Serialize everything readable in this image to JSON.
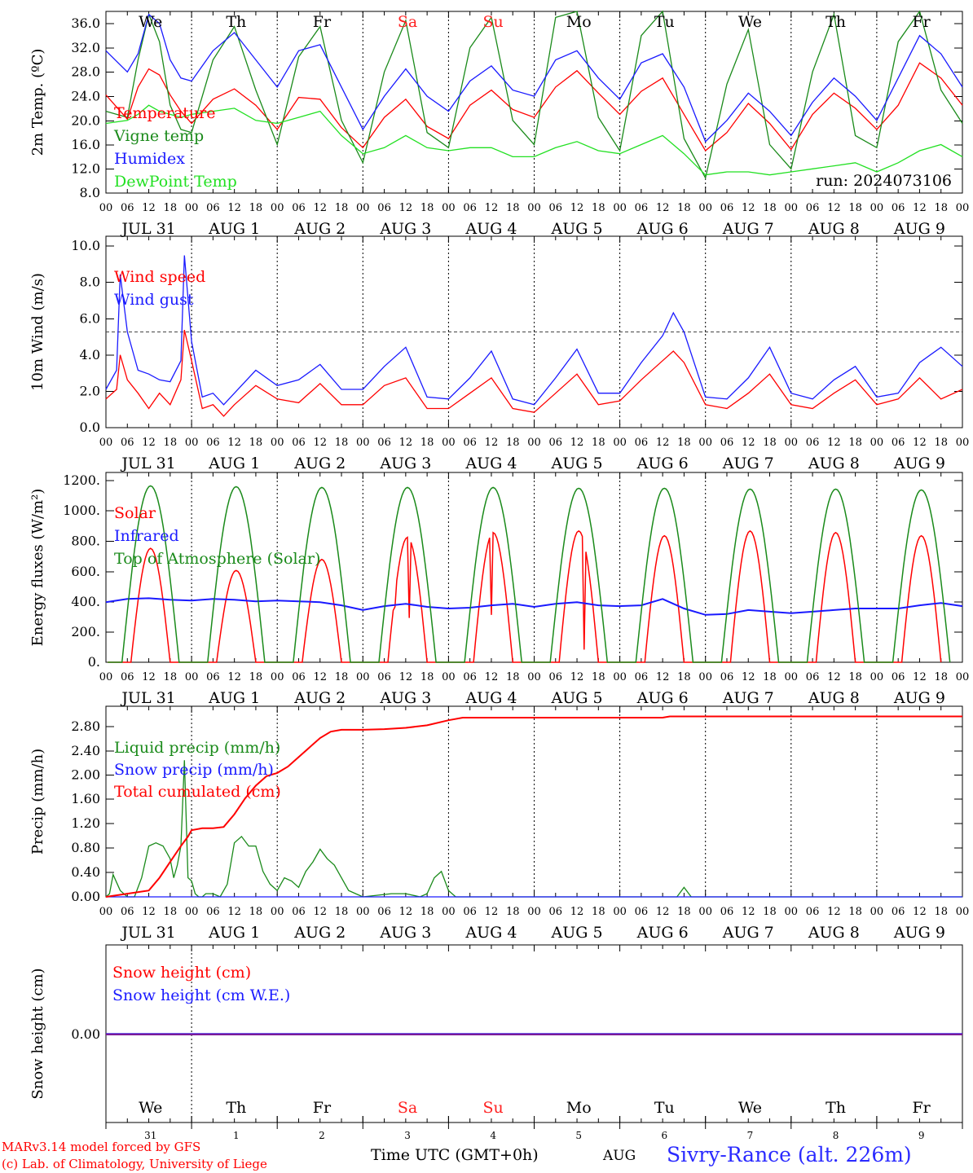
{
  "colors": {
    "temperature": "#ff0000",
    "vigne": "#1a8a1a",
    "humidex": "#1a1aff",
    "dewpoint": "#22e022",
    "weekend": "#ff2020",
    "station": "#2a2aff",
    "credit": "#ff0000"
  },
  "days": [
    "We",
    "Th",
    "Fr",
    "Sa",
    "Su",
    "Mo",
    "Tu",
    "We",
    "Th",
    "Fr"
  ],
  "day_colors": [
    "#000",
    "#000",
    "#000",
    "#ff2020",
    "#ff2020",
    "#000",
    "#000",
    "#000",
    "#000",
    "#000"
  ],
  "hour_ticks": [
    "00",
    "06",
    "12",
    "18"
  ],
  "hour_tick_end": "00",
  "date_labels": [
    "JUL 31",
    "AUG  1",
    "AUG  2",
    "AUG  3",
    "AUG  4",
    "AUG  5",
    "AUG  6",
    "AUG  7",
    "AUG  8",
    "AUG  9"
  ],
  "day_numbers": [
    "31",
    "1",
    "2",
    "3",
    "4",
    "5",
    "6",
    "7",
    "8",
    "9"
  ],
  "footer": {
    "credit_line1": "MARv3.14 model forced by GFS",
    "credit_line2": "(c) Lab. of Climatology, University of Liege",
    "time_label": "Time UTC (GMT+0h)",
    "month_label": "AUG",
    "station": "Sivry-Rance (alt. 226m)"
  },
  "chart_data": [
    {
      "type": "line",
      "ylabel": "2m Temp. (ºC)",
      "ylim": [
        8,
        38
      ],
      "yticks": [
        "8.0",
        "12.0",
        "16.0",
        "20.0",
        "24.0",
        "28.0",
        "32.0",
        "36.0"
      ],
      "annotation": "run: 2024073106",
      "x_unit": "hours since 2024-07-31 00 UTC",
      "series": [
        {
          "name": "Temperature",
          "color": "#ff0000",
          "x": [
            0,
            6,
            9,
            12,
            15,
            18,
            21,
            24,
            30,
            36,
            42,
            48,
            54,
            60,
            66,
            72,
            78,
            84,
            90,
            96,
            102,
            108,
            114,
            120,
            126,
            132,
            138,
            144,
            150,
            156,
            162,
            168,
            174,
            180,
            186,
            192,
            198,
            204,
            210,
            216,
            222,
            228,
            234,
            240
          ],
          "values": [
            24.2,
            20.2,
            25.5,
            28.5,
            27.5,
            24.2,
            21.5,
            19.5,
            23.5,
            25.2,
            22.5,
            18.5,
            23.8,
            23.5,
            18.8,
            15.5,
            20.5,
            23.5,
            19.0,
            17.0,
            22.5,
            25.0,
            21.8,
            20.5,
            25.5,
            28.2,
            24.5,
            21.0,
            24.8,
            27.0,
            21.0,
            15.0,
            18.0,
            22.8,
            19.5,
            15.2,
            21.0,
            24.5,
            22.0,
            18.5,
            22.5,
            29.5,
            27.0,
            22.5
          ]
        },
        {
          "name": "Vigne temp",
          "color": "#1a8a1a",
          "x": [
            0,
            6,
            9,
            12,
            15,
            18,
            21,
            24,
            30,
            36,
            42,
            48,
            54,
            60,
            66,
            72,
            78,
            84,
            90,
            96,
            102,
            108,
            114,
            120,
            126,
            132,
            138,
            144,
            150,
            156,
            162,
            168,
            174,
            180,
            186,
            192,
            198,
            204,
            210,
            216,
            222,
            228,
            234,
            240
          ],
          "values": [
            21.5,
            20.5,
            30.0,
            37.5,
            33.0,
            22.5,
            18.5,
            18.0,
            30.0,
            35.5,
            25.0,
            16.0,
            30.5,
            35.5,
            20.0,
            13.0,
            28.0,
            36.5,
            18.0,
            15.5,
            32.0,
            37.0,
            20.0,
            16.0,
            37.0,
            38.0,
            20.5,
            15.0,
            34.0,
            38.0,
            17.0,
            10.5,
            26.0,
            35.0,
            16.0,
            12.0,
            28.0,
            37.5,
            17.5,
            15.5,
            33.0,
            38.0,
            25.0,
            19.5
          ]
        },
        {
          "name": "Humidex",
          "color": "#1a1aff",
          "x": [
            0,
            6,
            9,
            12,
            15,
            18,
            21,
            24,
            30,
            36,
            42,
            48,
            54,
            60,
            66,
            72,
            78,
            84,
            90,
            96,
            102,
            108,
            114,
            120,
            126,
            132,
            138,
            144,
            150,
            156,
            162,
            168,
            174,
            180,
            186,
            192,
            198,
            204,
            210,
            216,
            222,
            228,
            234,
            240
          ],
          "values": [
            31.5,
            28.0,
            31.0,
            37.5,
            36.0,
            30.0,
            27.0,
            26.5,
            31.5,
            34.5,
            30.0,
            25.5,
            31.5,
            32.5,
            25.5,
            18.5,
            24.0,
            28.5,
            24.0,
            21.5,
            26.5,
            29.0,
            25.0,
            24.0,
            30.0,
            31.5,
            27.0,
            23.5,
            29.5,
            31.0,
            25.5,
            16.5,
            20.0,
            24.5,
            21.5,
            17.5,
            23.0,
            27.0,
            24.0,
            20.0,
            27.0,
            34.0,
            31.0,
            25.5
          ]
        },
        {
          "name": "DewPoint Temp",
          "color": "#22e022",
          "x": [
            0,
            6,
            9,
            12,
            15,
            18,
            21,
            24,
            30,
            36,
            42,
            48,
            54,
            60,
            66,
            72,
            78,
            84,
            90,
            96,
            102,
            108,
            114,
            120,
            126,
            132,
            138,
            144,
            150,
            156,
            162,
            168,
            174,
            180,
            186,
            192,
            198,
            204,
            210,
            216,
            222,
            228,
            234,
            240
          ],
          "values": [
            19.5,
            20.0,
            21.0,
            22.5,
            21.5,
            21.0,
            20.5,
            21.0,
            21.5,
            22.0,
            20.0,
            19.5,
            20.5,
            21.5,
            17.5,
            14.5,
            15.5,
            17.5,
            15.5,
            15.0,
            15.5,
            15.5,
            14.0,
            14.0,
            15.5,
            16.5,
            15.0,
            14.5,
            16.0,
            17.5,
            14.5,
            11.0,
            11.5,
            11.5,
            11.0,
            11.5,
            12.0,
            12.5,
            13.0,
            11.5,
            13.0,
            15.0,
            16.0,
            14.0
          ]
        }
      ]
    },
    {
      "type": "line",
      "ylabel": "10m Wind (m/s)",
      "ylim": [
        0,
        10
      ],
      "yticks": [
        "0.0",
        "2.0",
        "4.0",
        "6.0",
        "8.0",
        "10.0"
      ],
      "dashed_line": 5,
      "x_unit": "hours since 2024-07-31 00 UTC",
      "series": [
        {
          "name": "Wind speed",
          "color": "#ff0000",
          "x": [
            0,
            3,
            4,
            6,
            9,
            12,
            15,
            18,
            21,
            22,
            24,
            27,
            30,
            33,
            36,
            42,
            48,
            54,
            60,
            66,
            72,
            78,
            84,
            90,
            96,
            102,
            108,
            114,
            120,
            126,
            132,
            138,
            144,
            150,
            156,
            159,
            162,
            168,
            174,
            180,
            186,
            192,
            198,
            204,
            210,
            216,
            222,
            228,
            234,
            240
          ],
          "values": [
            1.5,
            2.0,
            3.8,
            2.5,
            1.8,
            1.0,
            1.8,
            1.2,
            2.5,
            5.1,
            3.5,
            1.0,
            1.2,
            0.6,
            1.2,
            2.2,
            1.5,
            1.3,
            2.3,
            1.2,
            1.2,
            2.2,
            2.6,
            1.0,
            1.0,
            1.8,
            2.6,
            1.0,
            0.8,
            1.8,
            2.8,
            1.2,
            1.4,
            2.5,
            3.5,
            4.0,
            3.4,
            1.2,
            1.0,
            1.8,
            2.8,
            1.2,
            1.0,
            1.8,
            2.5,
            1.2,
            1.5,
            2.6,
            1.5,
            2.0
          ]
        },
        {
          "name": "Wind gust",
          "color": "#1a1aff",
          "x": [
            0,
            3,
            4,
            6,
            9,
            12,
            15,
            18,
            21,
            22,
            24,
            27,
            30,
            33,
            36,
            42,
            48,
            54,
            60,
            66,
            72,
            78,
            84,
            90,
            96,
            102,
            108,
            114,
            120,
            126,
            132,
            138,
            144,
            150,
            156,
            159,
            162,
            168,
            174,
            180,
            186,
            192,
            198,
            204,
            210,
            216,
            222,
            228,
            234,
            240
          ],
          "values": [
            2.0,
            3.0,
            8.0,
            5.0,
            3.0,
            2.8,
            2.5,
            2.4,
            3.5,
            9.0,
            4.5,
            1.6,
            1.8,
            1.2,
            1.8,
            3.0,
            2.2,
            2.5,
            3.3,
            2.0,
            2.0,
            3.2,
            4.2,
            1.6,
            1.5,
            2.6,
            4.0,
            1.5,
            1.2,
            2.6,
            4.1,
            1.8,
            1.8,
            3.4,
            4.8,
            6.0,
            5.0,
            1.6,
            1.5,
            2.6,
            4.2,
            1.8,
            1.5,
            2.5,
            3.2,
            1.6,
            1.8,
            3.4,
            4.2,
            3.2
          ]
        }
      ]
    },
    {
      "type": "line",
      "ylabel": "Energy fluxes (W/m²)",
      "ylim": [
        0,
        1200
      ],
      "yticks": [
        "0.",
        "200.",
        "400.",
        "600.",
        "800.",
        "1000.",
        "1200."
      ],
      "x_unit": "hours since 2024-07-31 00 UTC",
      "series": [
        {
          "name": "Solar",
          "color": "#ff0000",
          "peaks": [
            720,
            580,
            650,
            790,
            820,
            830,
            800,
            830,
            820,
            800
          ],
          "solar_dips": [
            {
              "x": 81,
              "y": 350
            },
            {
              "x": 85,
              "y": 280
            },
            {
              "x": 108,
              "y": 300
            },
            {
              "x": 134,
              "y": 80
            }
          ]
        },
        {
          "name": "Infrared",
          "color": "#1a1aff",
          "x": [
            0,
            6,
            12,
            18,
            24,
            30,
            36,
            42,
            48,
            54,
            60,
            66,
            72,
            78,
            84,
            90,
            96,
            102,
            108,
            114,
            120,
            126,
            132,
            138,
            144,
            150,
            156,
            162,
            168,
            174,
            180,
            186,
            192,
            198,
            204,
            210,
            216,
            222,
            228,
            234,
            240
          ],
          "values": [
            380,
            400,
            405,
            395,
            390,
            400,
            395,
            385,
            390,
            385,
            380,
            360,
            330,
            355,
            370,
            350,
            340,
            345,
            360,
            370,
            350,
            370,
            380,
            360,
            355,
            360,
            400,
            340,
            300,
            305,
            330,
            320,
            310,
            320,
            330,
            340,
            340,
            340,
            360,
            375,
            355
          ]
        },
        {
          "name": "Top of Atmosphere (Solar)",
          "color": "#1a8a1a",
          "peaks": [
            1115,
            1110,
            1105,
            1105,
            1105,
            1100,
            1100,
            1095,
            1095,
            1090
          ]
        }
      ]
    },
    {
      "type": "line",
      "ylabel": "Precip (mm/h)",
      "ylim": [
        0,
        3.0
      ],
      "yticks": [
        "0.00",
        "0.40",
        "0.80",
        "1.20",
        "1.60",
        "2.00",
        "2.40",
        "2.80"
      ],
      "x_unit": "hours since 2024-07-31 00 UTC",
      "series": [
        {
          "name": "Liquid precip (mm/h)",
          "color": "#1a8a1a",
          "x": [
            0,
            1,
            2,
            4,
            6,
            8,
            10,
            12,
            14,
            16,
            18,
            19,
            20,
            21,
            22,
            23,
            24,
            25,
            26,
            27,
            28,
            30,
            32,
            34,
            36,
            38,
            40,
            42,
            44,
            46,
            48,
            50,
            52,
            54,
            56,
            58,
            60,
            62,
            64,
            66,
            68,
            70,
            72,
            80,
            84,
            88,
            90,
            92,
            94,
            96,
            98,
            100,
            102,
            120,
            150,
            160,
            162,
            164,
            170,
            240
          ],
          "values": [
            0,
            0.05,
            0.35,
            0.1,
            0,
            0,
            0.3,
            0.8,
            0.85,
            0.8,
            0.6,
            0.3,
            0.5,
            0.8,
            2.15,
            0.3,
            0.25,
            0.05,
            0,
            0,
            0.05,
            0.05,
            0,
            0.2,
            0.85,
            0.95,
            0.8,
            0.8,
            0.4,
            0.2,
            0.1,
            0.3,
            0.25,
            0.15,
            0.4,
            0.55,
            0.75,
            0.6,
            0.5,
            0.3,
            0.1,
            0.05,
            0,
            0.05,
            0.05,
            0,
            0.05,
            0.3,
            0.4,
            0.1,
            0,
            0,
            0,
            0,
            0,
            0,
            0.15,
            0,
            0,
            0
          ]
        },
        {
          "name": "Snow precip (mm/h)",
          "color": "#1a1aff",
          "x": [
            0,
            240
          ],
          "values": [
            0,
            0
          ]
        },
        {
          "name": "Total cumulated (cm)",
          "color": "#ff0000",
          "x": [
            0,
            6,
            12,
            15,
            18,
            21,
            23,
            24,
            27,
            30,
            33,
            36,
            39,
            42,
            45,
            48,
            51,
            54,
            57,
            60,
            63,
            66,
            69,
            72,
            78,
            84,
            90,
            96,
            100,
            102,
            108,
            114,
            120,
            132,
            144,
            156,
            158,
            168,
            180,
            192,
            204,
            216,
            228,
            240
          ],
          "values": [
            0,
            0.05,
            0.1,
            0.3,
            0.55,
            0.8,
            0.95,
            1.05,
            1.08,
            1.08,
            1.1,
            1.3,
            1.55,
            1.75,
            1.9,
            1.95,
            2.05,
            2.2,
            2.35,
            2.5,
            2.6,
            2.63,
            2.63,
            2.63,
            2.64,
            2.66,
            2.7,
            2.78,
            2.82,
            2.82,
            2.82,
            2.82,
            2.82,
            2.82,
            2.82,
            2.82,
            2.84,
            2.84,
            2.84,
            2.84,
            2.84,
            2.84,
            2.84,
            2.84
          ]
        }
      ]
    },
    {
      "type": "line",
      "ylabel": "Snow height (cm)",
      "ylim": [
        -1,
        1
      ],
      "yticks": [
        "0.00"
      ],
      "x_unit": "hours since 2024-07-31 00 UTC",
      "series": [
        {
          "name": "Snow height (cm)",
          "color": "#ff0000",
          "x": [
            0,
            240
          ],
          "values": [
            0,
            0
          ]
        },
        {
          "name": "Snow height (cm W.E.)",
          "color": "#1a1aff",
          "x": [
            0,
            240
          ],
          "values": [
            0,
            0
          ]
        }
      ]
    }
  ]
}
